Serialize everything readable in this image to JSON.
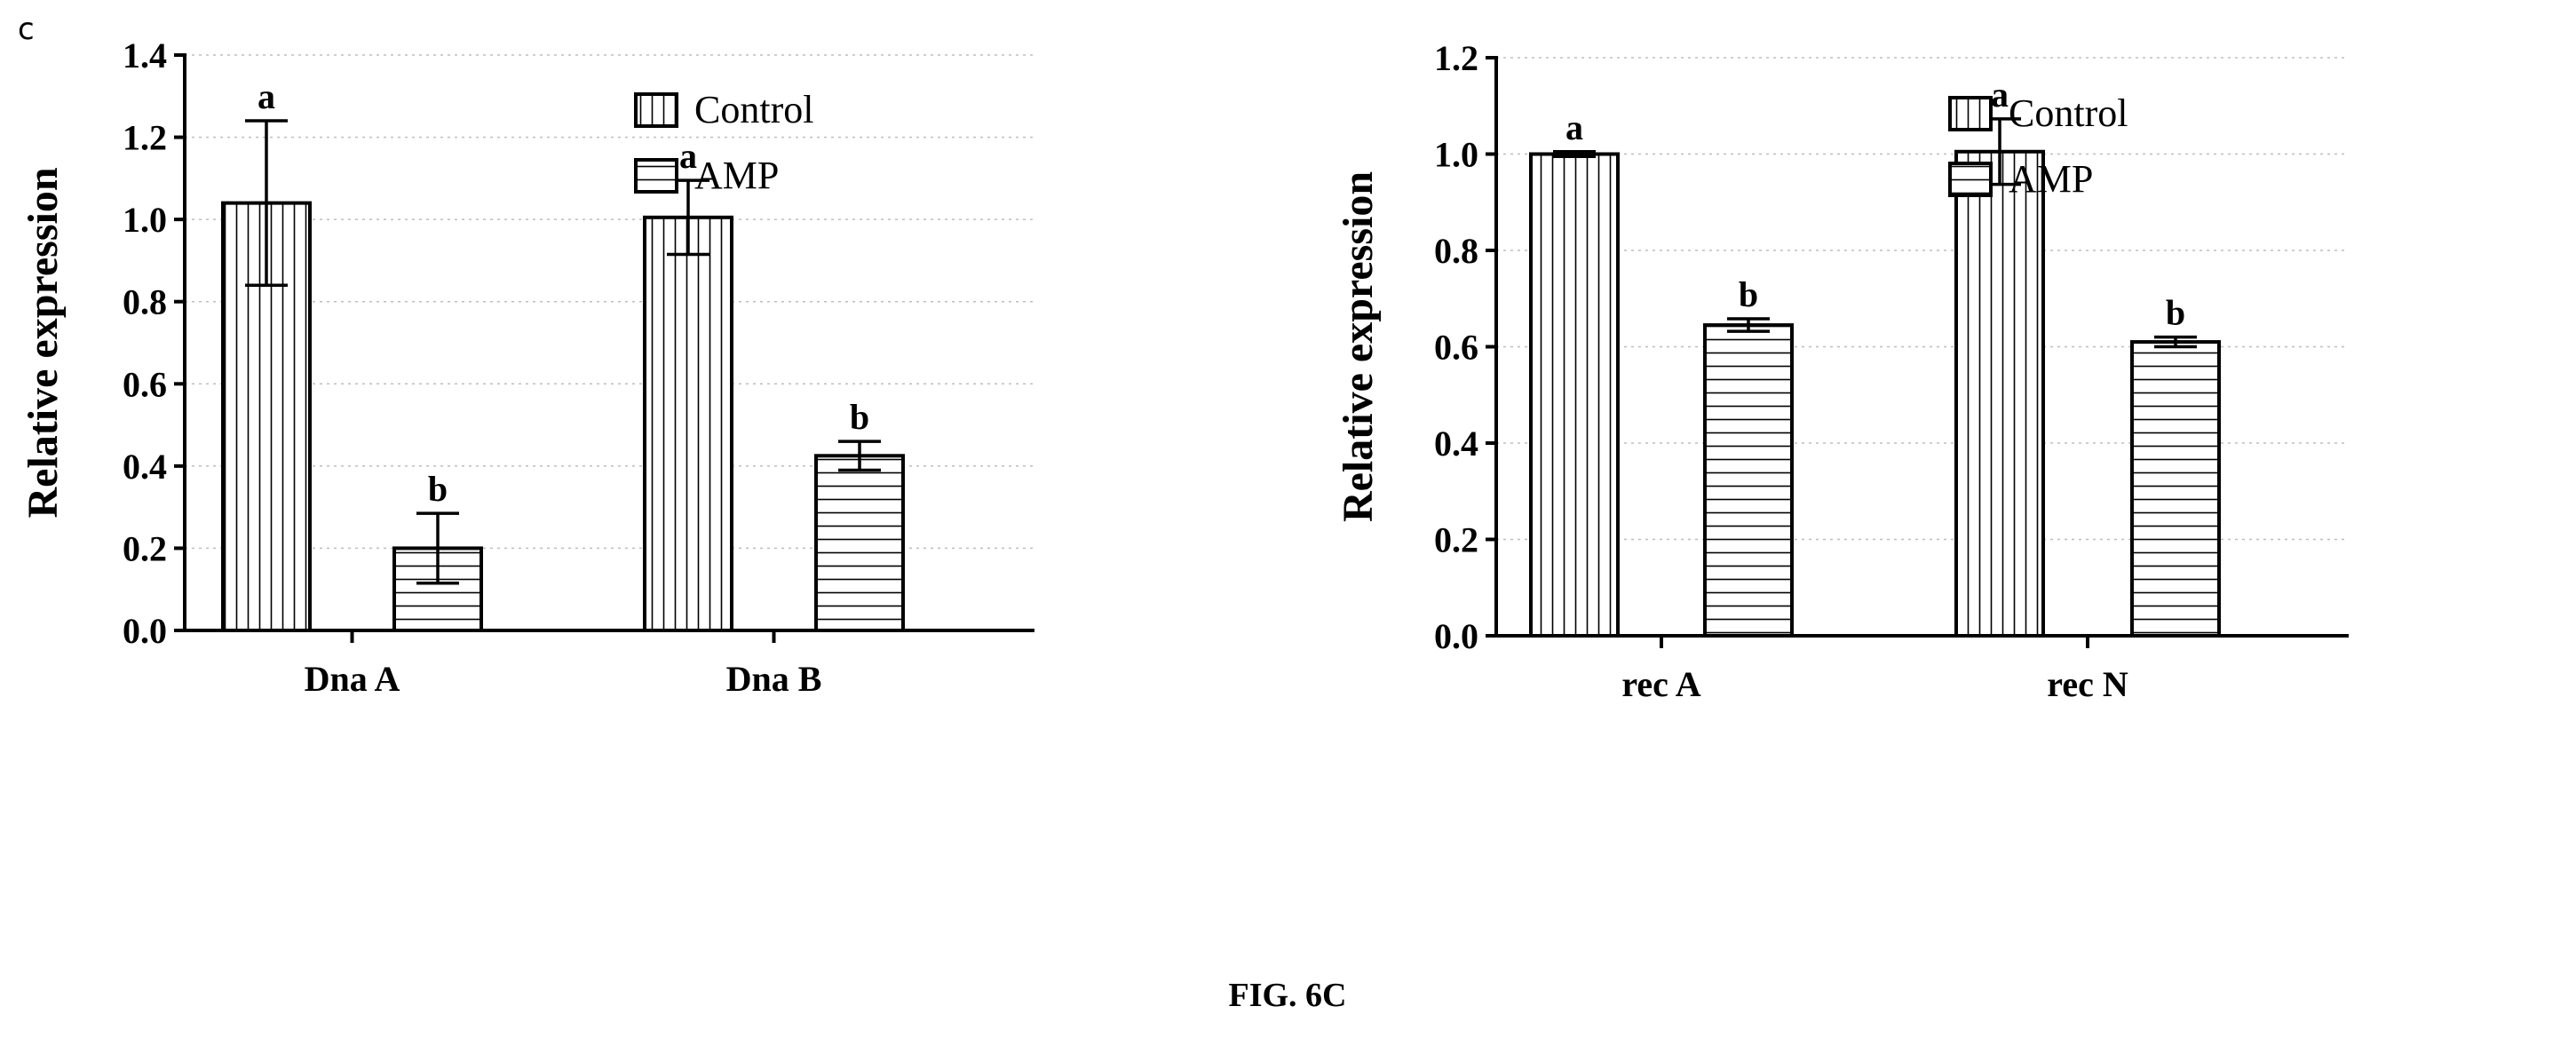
{
  "panel_letter": "c",
  "figure_caption": "FIG. 6C",
  "colors": {
    "ink": "#000000",
    "grid": "#bdbdbd",
    "background": "#ffffff"
  },
  "chart_data": [
    {
      "type": "bar",
      "categories": [
        "Dna A",
        "Dna B"
      ],
      "series": [
        {
          "name": "Control",
          "pattern": "vertical-stripes",
          "values": [
            1.04,
            1.005
          ],
          "errors": [
            0.2,
            0.09
          ]
        },
        {
          "name": "AMP",
          "pattern": "horizontal-stripes",
          "values": [
            0.2,
            0.425
          ],
          "errors": [
            0.085,
            0.035
          ]
        }
      ],
      "letters": [
        [
          "a",
          "a"
        ],
        [
          "b",
          "b"
        ]
      ],
      "ylabel": "Relative expression",
      "ylim": [
        0,
        1.4
      ],
      "yticks": [
        "0.0",
        "0.2",
        "0.4",
        "0.6",
        "0.8",
        "1.0",
        "1.2",
        "1.4"
      ],
      "grid": true,
      "legend": "top-right"
    },
    {
      "type": "bar",
      "categories": [
        "rec A",
        "rec N"
      ],
      "series": [
        {
          "name": "Control",
          "pattern": "vertical-stripes",
          "values": [
            1.0,
            1.005
          ],
          "errors": [
            0.005,
            0.068
          ]
        },
        {
          "name": "AMP",
          "pattern": "horizontal-stripes",
          "values": [
            0.645,
            0.61
          ],
          "errors": [
            0.013,
            0.01
          ]
        }
      ],
      "letters": [
        [
          "a",
          "a"
        ],
        [
          "b",
          "b"
        ]
      ],
      "ylabel": "Relative expression",
      "ylim": [
        0,
        1.2
      ],
      "yticks": [
        "0.0",
        "0.2",
        "0.4",
        "0.6",
        "0.8",
        "1.0",
        "1.2"
      ],
      "grid": true,
      "legend": "top-right"
    }
  ]
}
